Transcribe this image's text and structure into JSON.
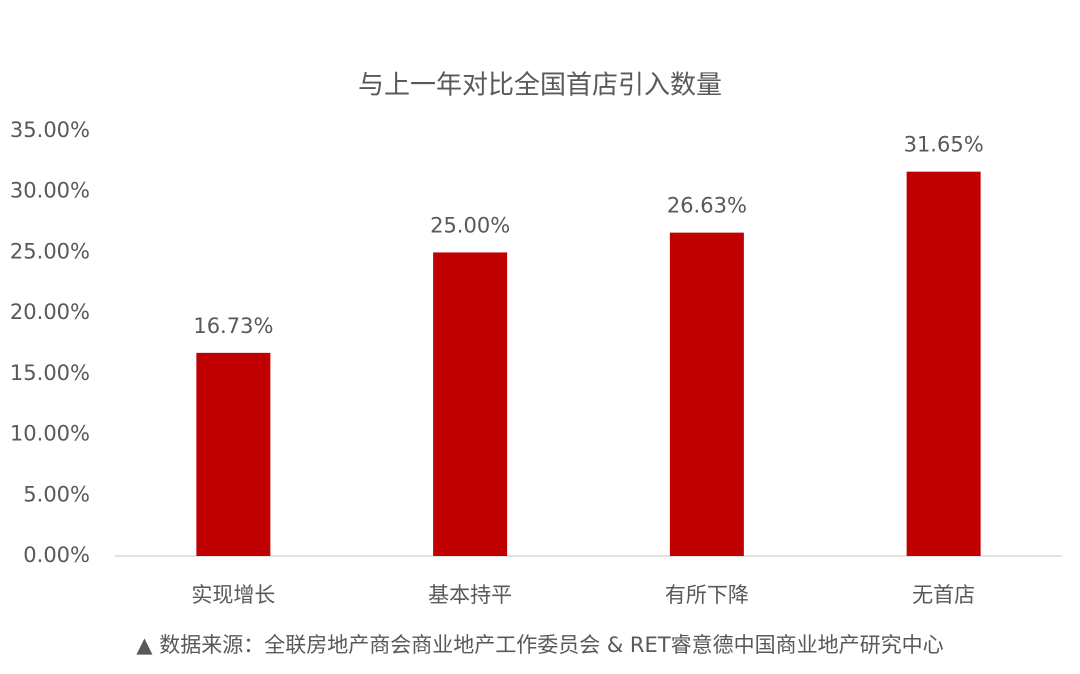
{
  "chart_data": {
    "type": "bar",
    "title": "与上一年对比全国首店引入数量",
    "categories": [
      "实现增长",
      "基本持平",
      "有所下降",
      "无首店"
    ],
    "values": [
      16.73,
      25.0,
      26.63,
      31.65
    ],
    "value_labels": [
      "16.73%",
      "25.00%",
      "26.63%",
      "31.65%"
    ],
    "color": "#c00000",
    "ylim": [
      0,
      35
    ],
    "yticks": [
      {
        "value": 0,
        "label": "0.00%"
      },
      {
        "value": 5,
        "label": "5.00%"
      },
      {
        "value": 10,
        "label": "10.00%"
      },
      {
        "value": 15,
        "label": "15.00%"
      },
      {
        "value": 20,
        "label": "20.00%"
      },
      {
        "value": 25,
        "label": "25.00%"
      },
      {
        "value": 30,
        "label": "30.00%"
      },
      {
        "value": 35,
        "label": "35.00%"
      }
    ],
    "grid": false,
    "source": "▲ 数据来源：全联房地产商会商业地产工作委员会 & RET睿意德中国商业地产研究中心"
  }
}
